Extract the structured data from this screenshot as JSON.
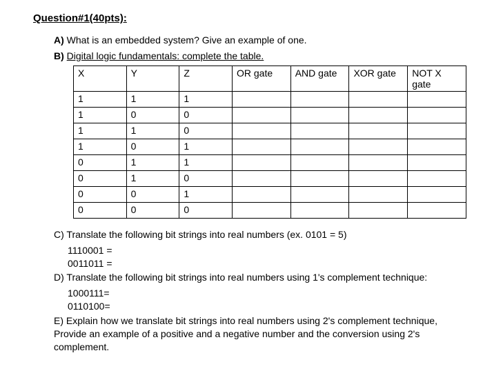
{
  "title": "Question#1(40pts):",
  "partA": {
    "label": "A)",
    "text": "What is an embedded system? Give an example of one."
  },
  "partB": {
    "label": "B)",
    "text": "Digital logic fundamentals: complete the table."
  },
  "table": {
    "columns": [
      "X",
      "Y",
      "Z",
      "OR gate",
      "AND gate",
      "XOR gate",
      "NOT X gate"
    ],
    "rows": [
      [
        "1",
        "1",
        "1",
        "",
        "",
        "",
        ""
      ],
      [
        "1",
        "0",
        "0",
        "",
        "",
        "",
        ""
      ],
      [
        "1",
        "1",
        "0",
        "",
        "",
        "",
        ""
      ],
      [
        "1",
        "0",
        "1",
        "",
        "",
        "",
        ""
      ],
      [
        "0",
        "1",
        "1",
        "",
        "",
        "",
        ""
      ],
      [
        "0",
        "1",
        "0",
        "",
        "",
        "",
        ""
      ],
      [
        "0",
        "0",
        "1",
        "",
        "",
        "",
        ""
      ],
      [
        "0",
        "0",
        "0",
        "",
        "",
        "",
        ""
      ]
    ],
    "col_classes": [
      "col-xyz",
      "col-xyz",
      "col-xyz",
      "col-gate",
      "col-gate",
      "col-gate",
      "col-gate"
    ]
  },
  "partC": {
    "label": "C)",
    "text": "Translate the following bit strings into real numbers (ex. 0101 = 5)",
    "lines": [
      "1110001 =",
      "0011011 ="
    ]
  },
  "partD": {
    "label": "D)",
    "text": "Translate the following bit strings into real numbers using 1's complement technique:",
    "lines": [
      "1000111=",
      "0110100="
    ]
  },
  "partE": {
    "label": "E)",
    "text": "Explain how we translate bit strings into real numbers using 2's complement technique, Provide an example of a positive and a negative number and the conversion using 2's complement."
  }
}
